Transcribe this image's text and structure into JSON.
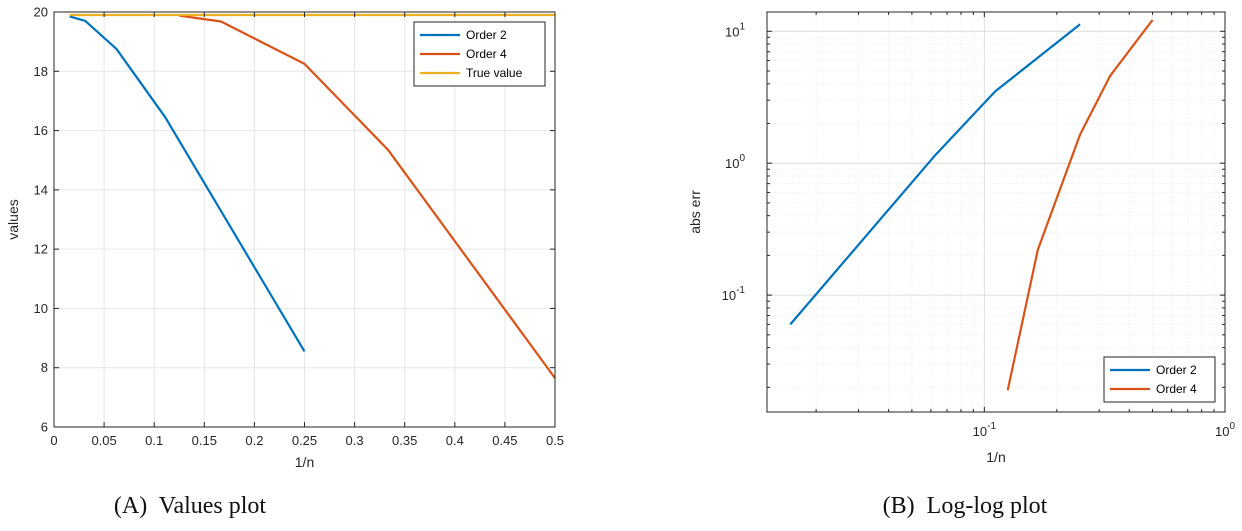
{
  "colors": {
    "order2": "#0072bd",
    "order4": "#d95319",
    "true_value": "#edb120",
    "grid": "#e6e6e6",
    "axis": "#262626"
  },
  "chart_data": [
    {
      "type": "line",
      "caption_prefix": "(A)",
      "caption_text": "Values plot",
      "xlabel": "1/n",
      "ylabel": "values",
      "xlim": [
        0,
        0.5
      ],
      "ylim": [
        6,
        20
      ],
      "xticks": [
        0,
        0.05,
        0.1,
        0.15,
        0.2,
        0.25,
        0.3,
        0.35,
        0.4,
        0.45,
        0.5
      ],
      "xtick_labels": [
        "0",
        "0.05",
        "0.1",
        "0.15",
        "0.2",
        "0.25",
        "0.3",
        "0.35",
        "0.4",
        "0.45",
        "0.5"
      ],
      "yticks": [
        6,
        8,
        10,
        12,
        14,
        16,
        18,
        20
      ],
      "ytick_labels": [
        "6",
        "8",
        "10",
        "12",
        "14",
        "16",
        "18",
        "20"
      ],
      "grid": true,
      "legend_position": "top-right",
      "series": [
        {
          "name": "Order 2",
          "color_key": "order2",
          "x": [
            0.015625,
            0.03125,
            0.0625,
            0.111,
            0.25
          ],
          "y": [
            19.85,
            19.7,
            18.75,
            16.45,
            8.55
          ]
        },
        {
          "name": "Order 4",
          "color_key": "order4",
          "x": [
            0.125,
            0.1667,
            0.25,
            0.3333,
            0.5
          ],
          "y": [
            19.88,
            19.68,
            18.25,
            15.35,
            7.65
          ]
        },
        {
          "name": "True value",
          "color_key": "true_value",
          "x": [
            0.015625,
            0.5
          ],
          "y": [
            19.9,
            19.9
          ]
        }
      ]
    },
    {
      "type": "line",
      "scale": "loglog",
      "caption_prefix": "(B)",
      "caption_text": "Log-log plot",
      "xlabel": "1/n",
      "ylabel": "abs err",
      "xlim": [
        0.0125,
        1
      ],
      "ylim": [
        0.013,
        14
      ],
      "xtick_labels": [
        {
          "value": 0.1,
          "base": "10",
          "exp": "-1"
        },
        {
          "value": 1,
          "base": "10",
          "exp": "0"
        }
      ],
      "ytick_labels": [
        {
          "value": 0.1,
          "base": "10",
          "exp": "-1"
        },
        {
          "value": 1,
          "base": "10",
          "exp": "0"
        },
        {
          "value": 10,
          "base": "10",
          "exp": "1"
        }
      ],
      "grid": true,
      "legend_position": "bottom-right",
      "series": [
        {
          "name": "Order 2",
          "color_key": "order2",
          "x": [
            0.015625,
            0.0625,
            0.111,
            0.25
          ],
          "y": [
            0.06,
            1.15,
            3.5,
            11.3
          ]
        },
        {
          "name": "Order 4",
          "color_key": "order4",
          "x": [
            0.125,
            0.1667,
            0.25,
            0.3333,
            0.5
          ],
          "y": [
            0.019,
            0.22,
            1.65,
            4.6,
            12.2
          ]
        }
      ]
    }
  ]
}
